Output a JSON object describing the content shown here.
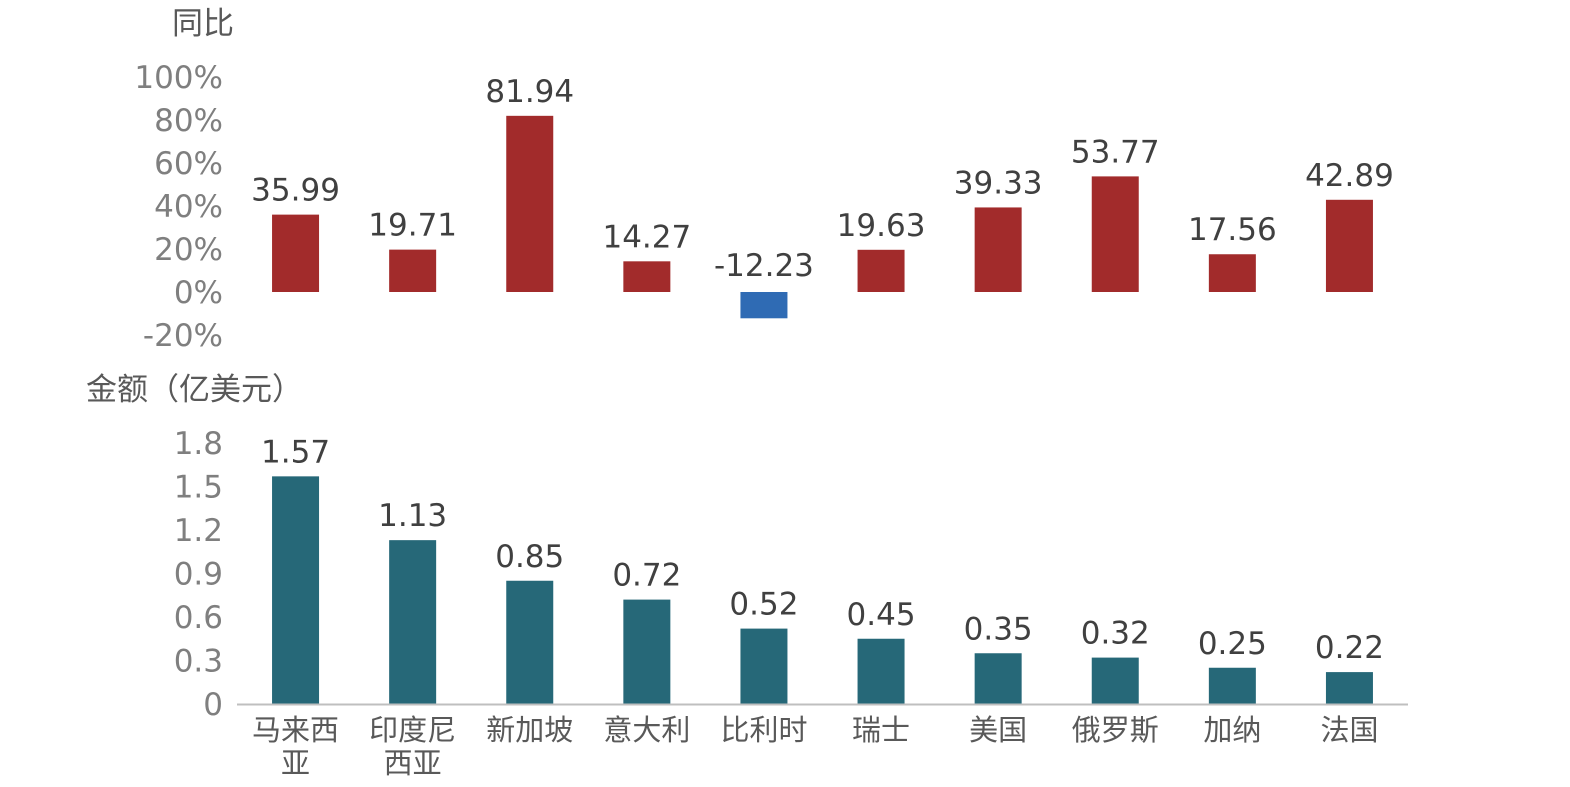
{
  "chart_data": [
    {
      "type": "bar",
      "ylabel": "同比",
      "categories": [
        "马来西亚",
        "印度尼西亚",
        "新加坡",
        "意大利",
        "比利时",
        "瑞士",
        "美国",
        "俄罗斯",
        "加纳",
        "法国"
      ],
      "values": [
        35.99,
        19.71,
        81.94,
        14.27,
        -12.23,
        19.63,
        39.33,
        53.77,
        17.56,
        42.89
      ],
      "value_labels": [
        "35.99",
        "19.71",
        "81.94",
        "14.27",
        "-12.23",
        "19.63",
        "39.33",
        "53.77",
        "17.56",
        "42.89"
      ],
      "ylim": [
        -20,
        100
      ],
      "yticks": [
        -20,
        0,
        20,
        40,
        60,
        80,
        100
      ],
      "ytick_labels": [
        "-20%",
        "0%",
        "20%",
        "40%",
        "60%",
        "80%",
        "100%"
      ],
      "grid": false,
      "colors": {
        "positive": "#a22b2b",
        "negative": "#2f6bb4"
      }
    },
    {
      "type": "bar",
      "ylabel": "金额（亿美元）",
      "categories": [
        "马来西亚",
        "印度尼西亚",
        "新加坡",
        "意大利",
        "比利时",
        "瑞士",
        "美国",
        "俄罗斯",
        "加纳",
        "法国"
      ],
      "category_labels": [
        [
          "马来西",
          "亚"
        ],
        [
          "印度尼",
          "西亚"
        ],
        [
          "新加坡"
        ],
        [
          "意大利"
        ],
        [
          "比利时"
        ],
        [
          "瑞士"
        ],
        [
          "美国"
        ],
        [
          "俄罗斯"
        ],
        [
          "加纳"
        ],
        [
          "法国"
        ]
      ],
      "values": [
        1.57,
        1.13,
        0.85,
        0.72,
        0.52,
        0.45,
        0.35,
        0.32,
        0.25,
        0.22
      ],
      "value_labels": [
        "1.57",
        "1.13",
        "0.85",
        "0.72",
        "0.52",
        "0.45",
        "0.35",
        "0.32",
        "0.25",
        "0.22"
      ],
      "ylim": [
        0,
        1.8
      ],
      "yticks": [
        0,
        0.3,
        0.6,
        0.9,
        1.2,
        1.5,
        1.8
      ],
      "ytick_labels": [
        "0",
        "0.3",
        "0.6",
        "0.9",
        "1.2",
        "1.5",
        "1.8"
      ],
      "grid": false,
      "colors": {
        "bar": "#266878",
        "axis": "#bfbfbf"
      }
    }
  ]
}
